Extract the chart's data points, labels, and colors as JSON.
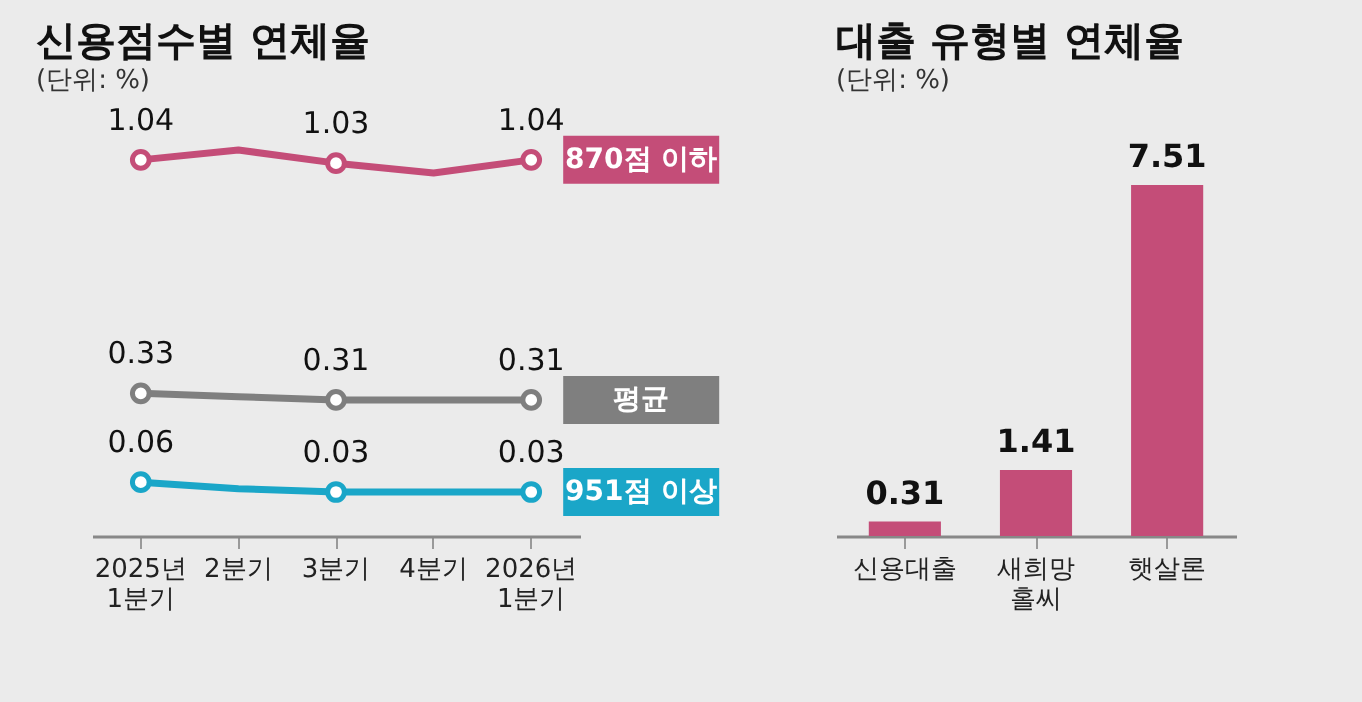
{
  "chart_data": [
    {
      "type": "line",
      "title": "신용점수별 연체율",
      "subtitle": "(단위: %)",
      "categories": [
        "2025년 1분기",
        "2분기",
        "3분기",
        "4분기",
        "2026년 1분기"
      ],
      "marker": "circle",
      "legend": false,
      "tick_labels": "x",
      "series": [
        {
          "name": "870점 이하",
          "color": "#c44d78",
          "values": [
            1.04,
            1.07,
            1.03,
            1.0,
            1.04
          ],
          "value_labels": [
            "1.04",
            null,
            "1.03",
            null,
            "1.04"
          ]
        },
        {
          "name": "평균",
          "color": "#7f7f7f",
          "values": [
            0.33,
            0.32,
            0.31,
            0.31,
            0.31
          ],
          "value_labels": [
            "0.33",
            null,
            "0.31",
            null,
            "0.31"
          ]
        },
        {
          "name": "951점 이상",
          "color": "#1aa6c8",
          "values": [
            0.06,
            0.04,
            0.03,
            0.03,
            0.03
          ],
          "value_labels": [
            "0.06",
            null,
            "0.03",
            null,
            "0.03"
          ]
        }
      ]
    },
    {
      "type": "bar",
      "title": "대출 유형별 연체율",
      "subtitle": "(단위: %)",
      "categories": [
        "신용대출",
        "새희망 홀씨",
        "햇살론"
      ],
      "values": [
        0.31,
        1.41,
        7.51
      ],
      "color": "#c44d78",
      "data_labels": true,
      "tick_labels": "x"
    }
  ]
}
